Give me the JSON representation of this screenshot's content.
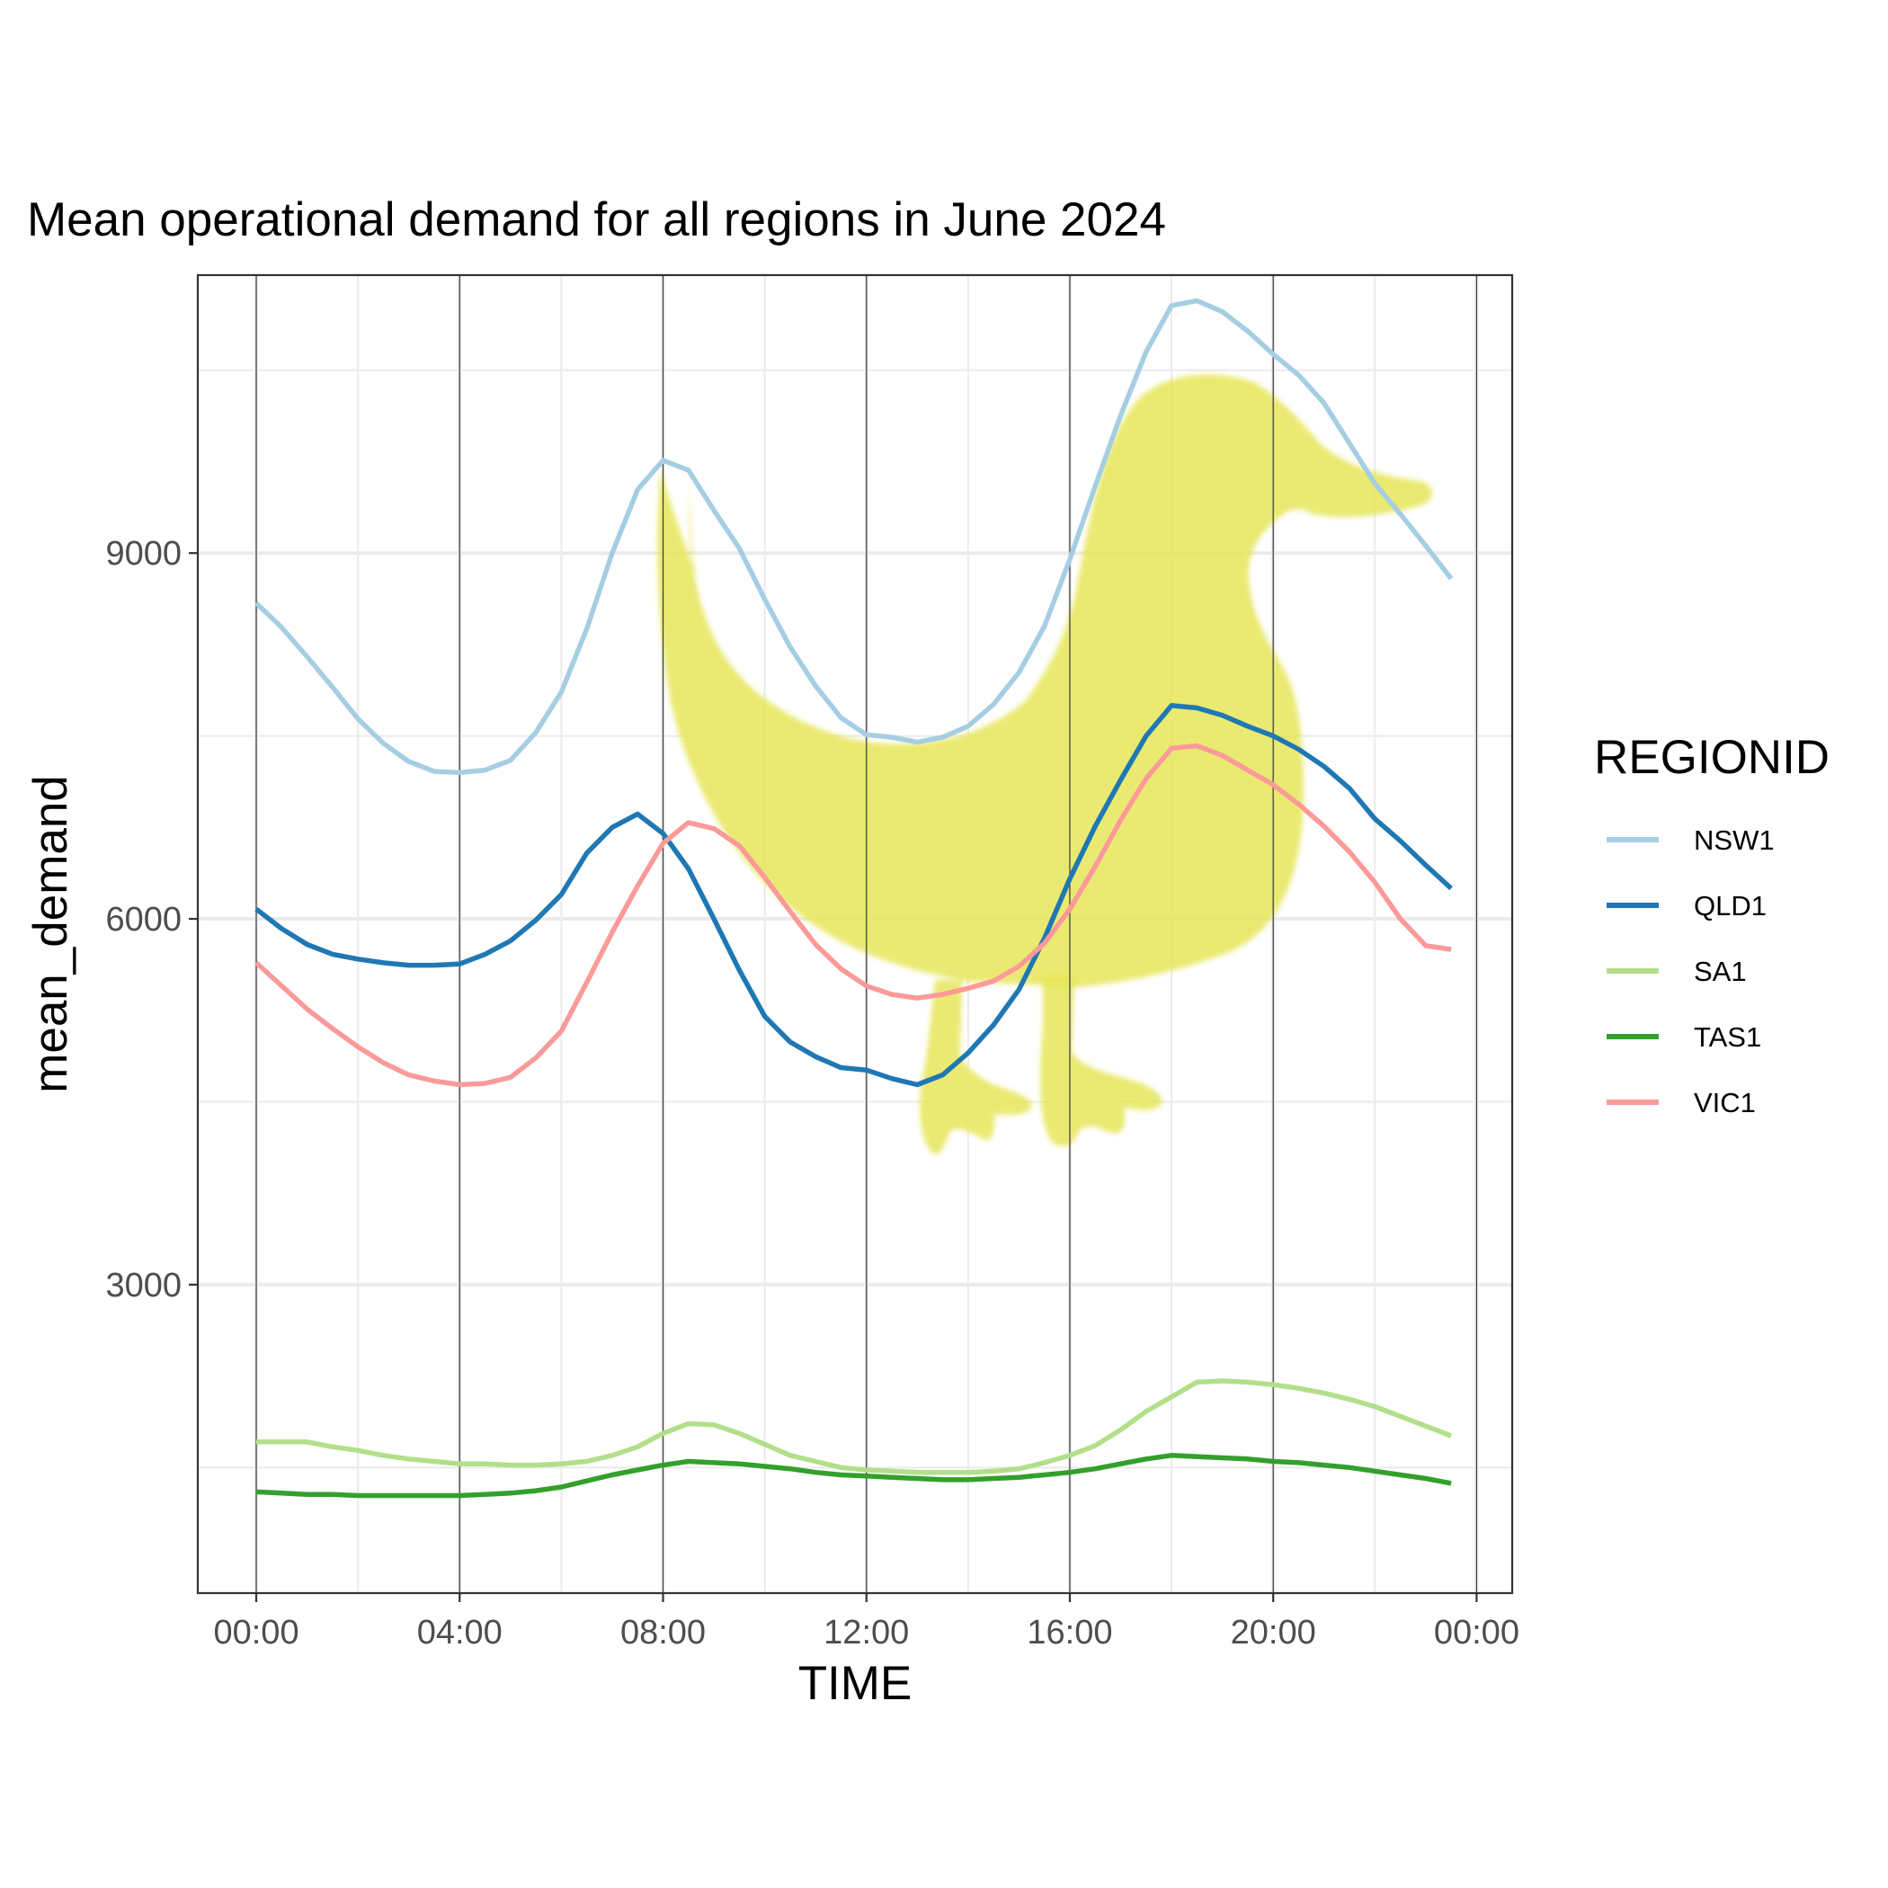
{
  "chart_data": {
    "type": "line",
    "title": "Mean operational demand for all regions in June 2024",
    "xlabel": "TIME",
    "ylabel": "mean_demand",
    "x_ticks": [
      "00:00",
      "04:00",
      "08:00",
      "12:00",
      "16:00",
      "20:00",
      "00:00"
    ],
    "x_tick_hours": [
      0,
      4,
      8,
      12,
      16,
      20,
      24
    ],
    "y_ticks": [
      3000,
      6000,
      9000
    ],
    "xlim_hours": [
      -1.15,
      24.7
    ],
    "ylim": [
      470,
      11280
    ],
    "grid": true,
    "vertical_lines_hours": [
      0,
      4,
      8,
      12,
      16,
      20,
      24
    ],
    "legend": {
      "title": "REGIONID",
      "position": "right"
    },
    "annotation": {
      "type": "duck-silhouette",
      "color": "#e6e65a"
    },
    "x_hours": [
      0,
      0.5,
      1,
      1.5,
      2,
      2.5,
      3,
      3.5,
      4,
      4.5,
      5,
      5.5,
      6,
      6.5,
      7,
      7.5,
      8,
      8.5,
      9,
      9.5,
      10,
      10.5,
      11,
      11.5,
      12,
      12.5,
      13,
      13.5,
      14,
      14.5,
      15,
      15.5,
      16,
      16.5,
      17,
      17.5,
      18,
      18.5,
      19,
      19.5,
      20,
      20.5,
      21,
      21.5,
      22,
      22.5,
      23,
      23.5
    ],
    "series": [
      {
        "name": "NSW1",
        "color": "#a6cee3",
        "values": [
          8590,
          8390,
          8150,
          7900,
          7640,
          7440,
          7290,
          7210,
          7200,
          7220,
          7300,
          7530,
          7860,
          8380,
          9000,
          9520,
          9760,
          9680,
          9350,
          9040,
          8620,
          8230,
          7910,
          7650,
          7510,
          7490,
          7450,
          7490,
          7580,
          7760,
          8020,
          8400,
          8950,
          9550,
          10130,
          10650,
          11030,
          11070,
          10980,
          10820,
          10630,
          10460,
          10230,
          9900,
          9570,
          9320,
          9060,
          8790
        ]
      },
      {
        "name": "QLD1",
        "color": "#1f78b4",
        "values": [
          6080,
          5920,
          5790,
          5710,
          5670,
          5640,
          5620,
          5620,
          5630,
          5710,
          5820,
          5990,
          6200,
          6540,
          6750,
          6860,
          6700,
          6410,
          6000,
          5580,
          5200,
          4990,
          4870,
          4780,
          4760,
          4690,
          4640,
          4720,
          4900,
          5130,
          5420,
          5840,
          6330,
          6760,
          7140,
          7500,
          7750,
          7730,
          7670,
          7580,
          7500,
          7390,
          7250,
          7070,
          6820,
          6640,
          6440,
          6250
        ]
      },
      {
        "name": "SA1",
        "color": "#b2df8a",
        "values": [
          1710,
          1710,
          1710,
          1670,
          1640,
          1600,
          1570,
          1550,
          1530,
          1530,
          1520,
          1520,
          1530,
          1550,
          1600,
          1670,
          1780,
          1860,
          1850,
          1780,
          1690,
          1600,
          1550,
          1500,
          1480,
          1470,
          1460,
          1460,
          1460,
          1470,
          1490,
          1540,
          1600,
          1680,
          1810,
          1960,
          2080,
          2200,
          2210,
          2200,
          2180,
          2150,
          2110,
          2060,
          2000,
          1920,
          1840,
          1760
        ]
      },
      {
        "name": "TAS1",
        "color": "#33a02c",
        "values": [
          1300,
          1290,
          1280,
          1280,
          1270,
          1270,
          1270,
          1270,
          1270,
          1280,
          1290,
          1310,
          1340,
          1390,
          1440,
          1480,
          1520,
          1550,
          1540,
          1530,
          1510,
          1490,
          1460,
          1440,
          1430,
          1420,
          1410,
          1400,
          1400,
          1410,
          1420,
          1440,
          1460,
          1490,
          1530,
          1570,
          1600,
          1590,
          1580,
          1570,
          1550,
          1540,
          1520,
          1500,
          1470,
          1440,
          1410,
          1370
        ]
      },
      {
        "name": "VIC1",
        "color": "#fb9a99",
        "values": [
          5640,
          5450,
          5260,
          5100,
          4950,
          4820,
          4720,
          4670,
          4640,
          4650,
          4700,
          4860,
          5080,
          5480,
          5890,
          6270,
          6620,
          6790,
          6740,
          6600,
          6340,
          6060,
          5790,
          5590,
          5450,
          5380,
          5350,
          5380,
          5430,
          5490,
          5610,
          5800,
          6080,
          6430,
          6810,
          7150,
          7400,
          7420,
          7340,
          7220,
          7100,
          6940,
          6760,
          6550,
          6300,
          6000,
          5780,
          5750
        ]
      }
    ]
  }
}
